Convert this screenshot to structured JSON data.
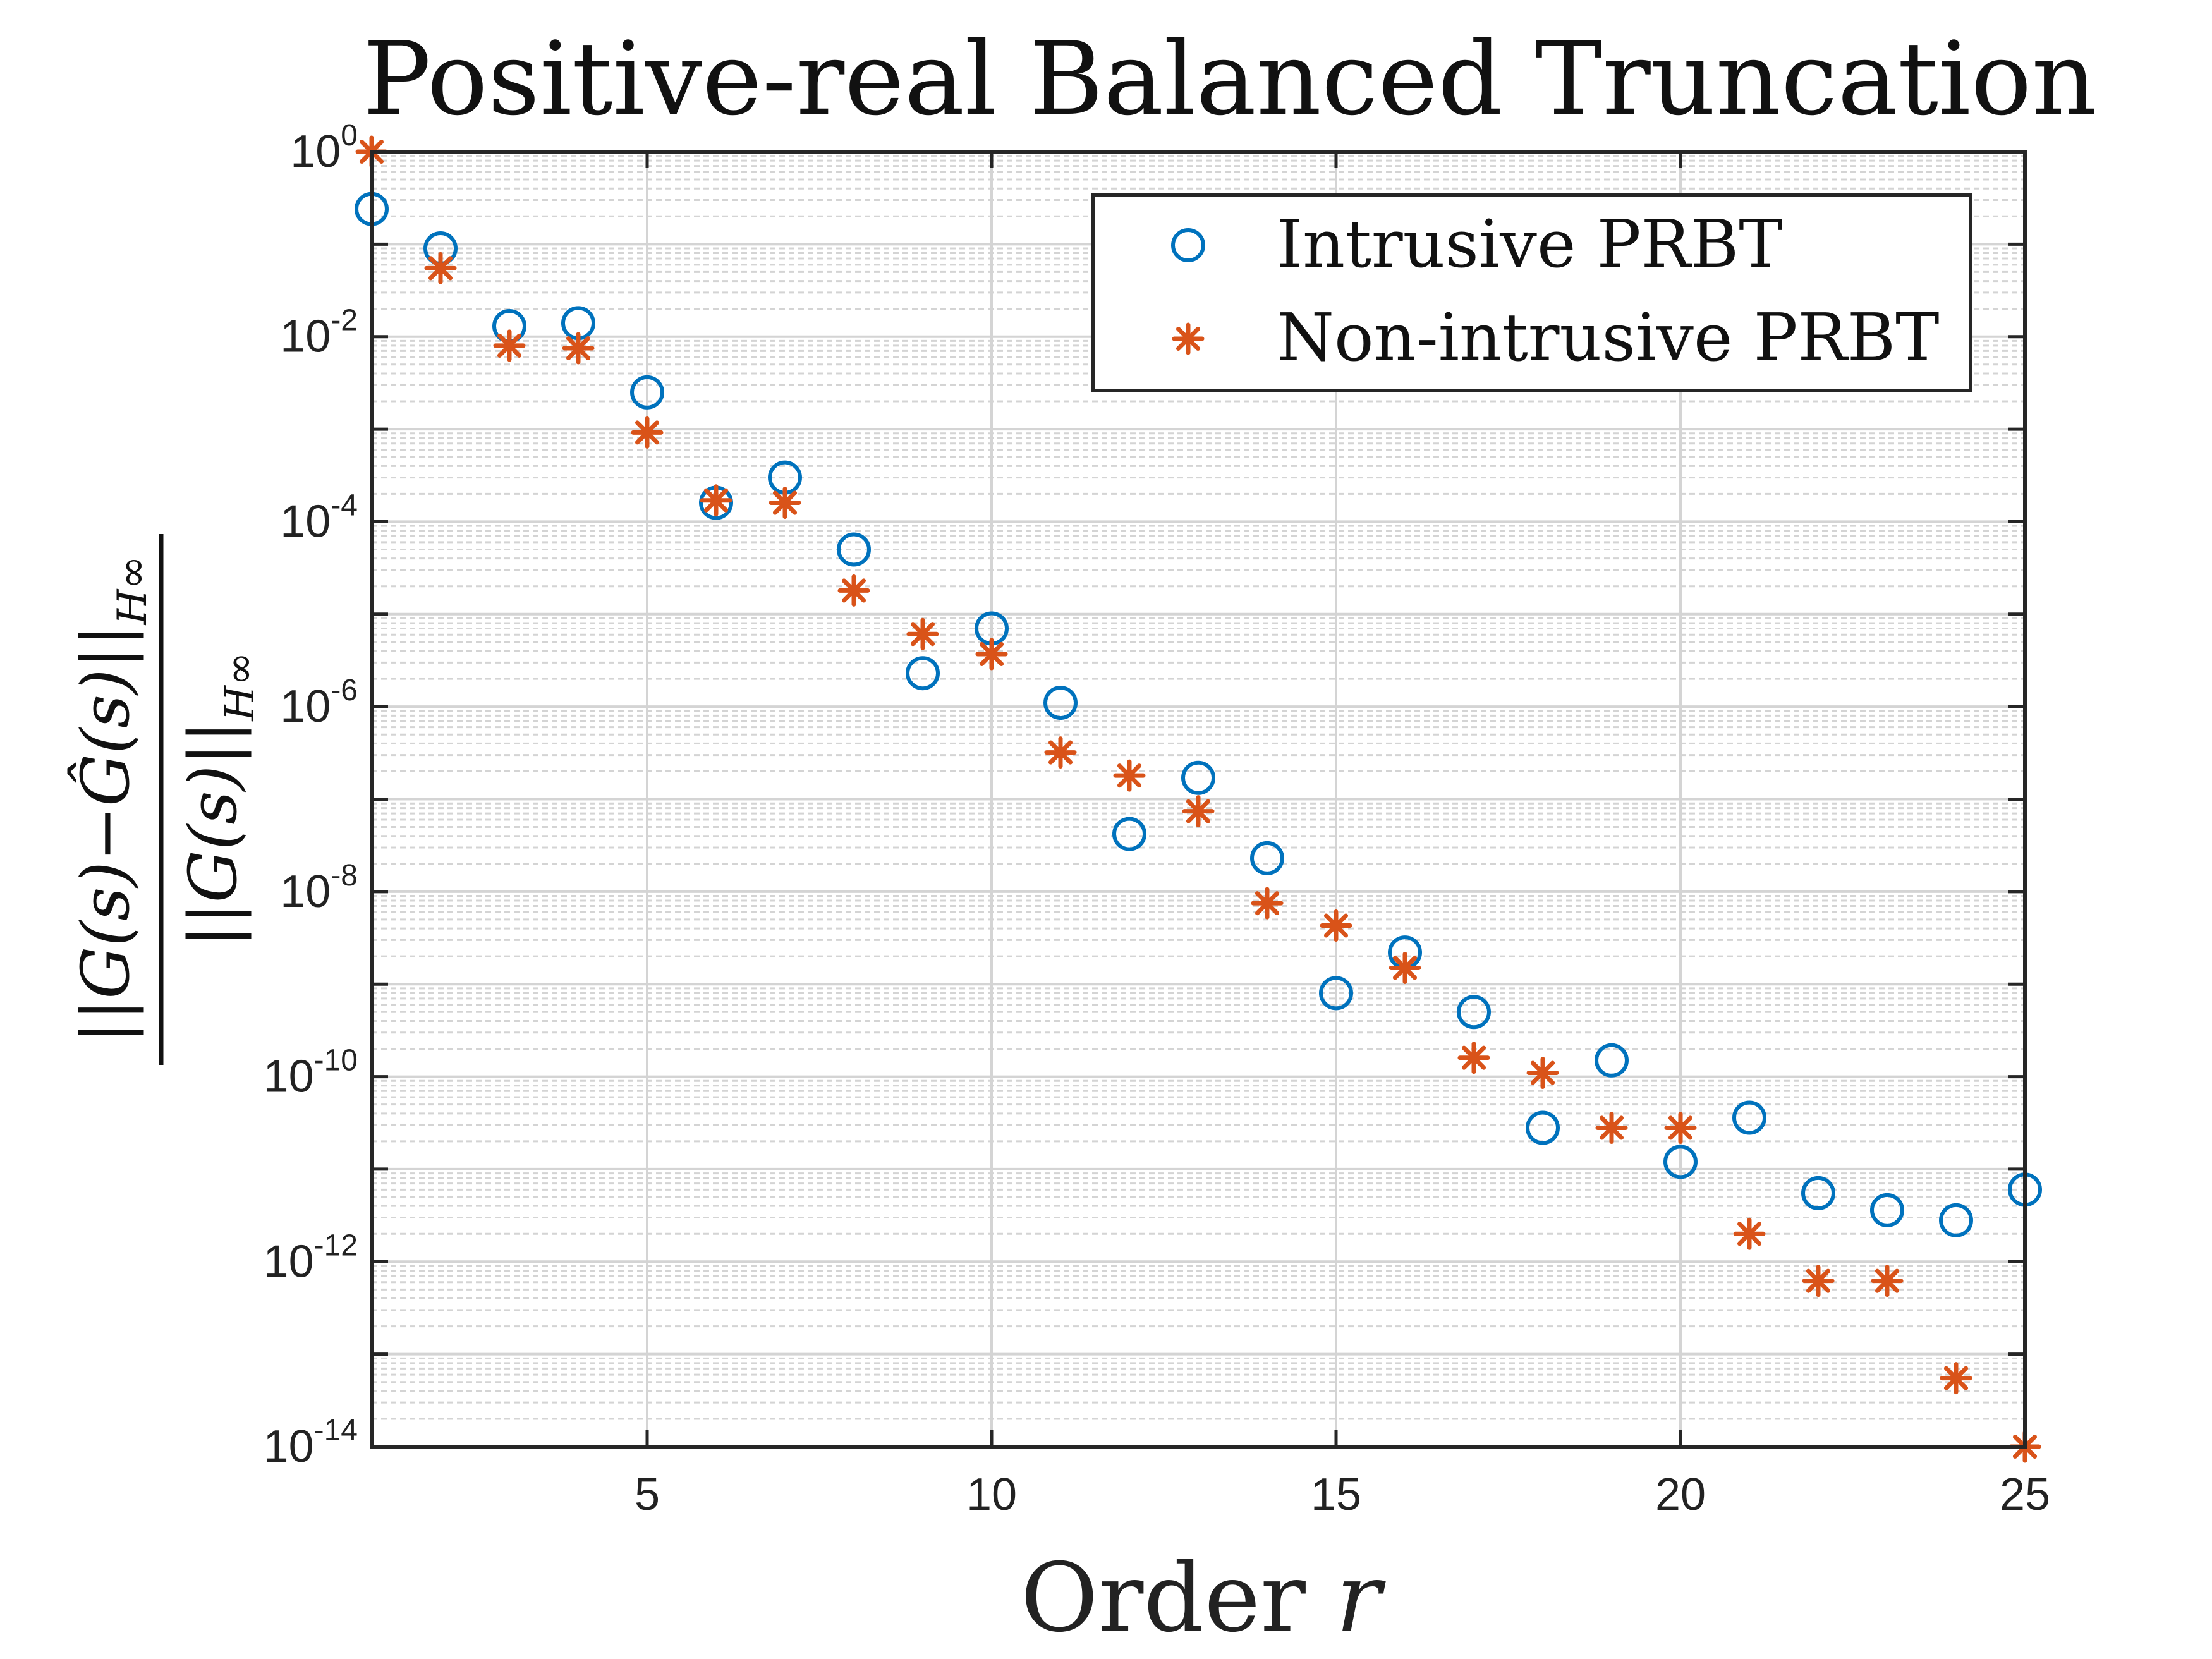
{
  "chart_data": {
    "type": "scatter",
    "title": "Positive-real Balanced Truncation",
    "xlabel": "Order",
    "xlabel_var": "r",
    "ylabel_num": "||G(s)−Ĝ(s)||",
    "ylabel_den": "||G(s)||",
    "ylabel_sub": "H∞",
    "xscale": "linear",
    "yscale": "log",
    "xlim": [
      1,
      25
    ],
    "ylim_exp": [
      -14,
      0
    ],
    "x_ticks": [
      5,
      10,
      15,
      20,
      25
    ],
    "y_tick_labels": [
      {
        "base": "10",
        "exp": "0"
      },
      {
        "base": "10",
        "exp": "-2"
      },
      {
        "base": "10",
        "exp": "-4"
      },
      {
        "base": "10",
        "exp": "-6"
      },
      {
        "base": "10",
        "exp": "-8"
      },
      {
        "base": "10",
        "exp": "-10"
      },
      {
        "base": "10",
        "exp": "-12"
      },
      {
        "base": "10",
        "exp": "-14"
      }
    ],
    "grid": true,
    "legend_position": "top-right",
    "series": [
      {
        "name": "Intrusive PRBT",
        "marker": "circle",
        "color": "#0072BD",
        "x": [
          1,
          2,
          3,
          4,
          5,
          6,
          7,
          8,
          9,
          10,
          11,
          12,
          13,
          14,
          15,
          16,
          17,
          18,
          19,
          20,
          21,
          22,
          23,
          24,
          25
        ],
        "y": [
          0.24,
          0.09,
          0.013,
          0.014,
          0.0025,
          0.00016,
          0.0003,
          5e-05,
          2.3e-06,
          7e-06,
          1.1e-06,
          4.2e-08,
          1.7e-07,
          2.3e-08,
          8e-10,
          2.2e-09,
          5e-10,
          2.8e-11,
          1.5e-10,
          1.2e-11,
          3.6e-11,
          5.5e-12,
          3.6e-12,
          2.8e-12,
          6e-12
        ]
      },
      {
        "name": "Non-intrusive PRBT",
        "marker": "asterisk",
        "color": "#D95319",
        "x": [
          1,
          2,
          3,
          4,
          5,
          6,
          7,
          8,
          9,
          10,
          11,
          12,
          13,
          14,
          15,
          16,
          17,
          18,
          19,
          20,
          21,
          22,
          23,
          24,
          25
        ],
        "y": [
          1.0,
          0.055,
          0.008,
          0.0075,
          0.00092,
          0.00017,
          0.00016,
          1.8e-05,
          6.1e-06,
          3.7e-06,
          3.2e-07,
          1.8e-07,
          7.4e-08,
          7.5e-09,
          4.3e-09,
          1.5e-09,
          1.6e-10,
          1.1e-10,
          2.8e-11,
          2.8e-11,
          2e-12,
          6.2e-13,
          6.2e-13,
          5.5e-14,
          1e-14
        ]
      }
    ]
  }
}
